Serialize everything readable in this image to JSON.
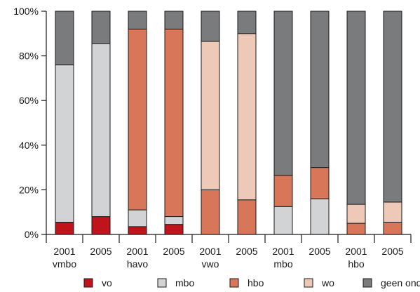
{
  "chart_data": {
    "type": "bar",
    "stacked": true,
    "normalized": true,
    "ylim": [
      0,
      100
    ],
    "yticks": [
      "0%",
      "20%",
      "40%",
      "60%",
      "80%",
      "100%"
    ],
    "categories": [
      [
        "2001",
        "vmbo"
      ],
      [
        "2005",
        ""
      ],
      [
        "2001",
        "havo"
      ],
      [
        "2005",
        ""
      ],
      [
        "2001",
        "vwo"
      ],
      [
        "2005",
        ""
      ],
      [
        "2001",
        "mbo"
      ],
      [
        "2005",
        ""
      ],
      [
        "2001",
        "hbo"
      ],
      [
        "2005",
        ""
      ]
    ],
    "series": [
      {
        "name": "vo",
        "color": "#c0141c",
        "values": [
          5.5,
          8,
          3.5,
          4.5,
          0,
          0,
          0,
          0,
          0,
          0
        ]
      },
      {
        "name": "mbo",
        "color": "#d1d3d5",
        "values": [
          70.5,
          77.5,
          7.5,
          3.5,
          0,
          0,
          12.5,
          16,
          0,
          0
        ]
      },
      {
        "name": "hbo",
        "color": "#d8765a",
        "values": [
          0,
          0,
          81,
          84,
          20,
          15.5,
          14,
          14,
          5,
          5.5
        ]
      },
      {
        "name": "wo",
        "color": "#efc9b8",
        "values": [
          0,
          0,
          0,
          0,
          66.5,
          74.5,
          0,
          0,
          8.5,
          9
        ]
      },
      {
        "name": "geen onderwijs",
        "color": "#7a7b7d",
        "values": [
          24,
          14.5,
          8,
          8,
          13.5,
          10,
          73.5,
          70,
          86.5,
          85.5
        ]
      }
    ],
    "grid": false,
    "legend_position": "bottom"
  }
}
